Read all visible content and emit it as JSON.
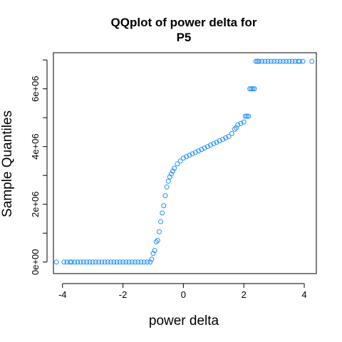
{
  "chart_data": {
    "type": "scatter",
    "title_lines": [
      "QQplot of power delta for",
      "P5"
    ],
    "xlabel": "power delta",
    "ylabel": "Sample Quantiles",
    "xlim": [
      -4.3,
      4.4
    ],
    "ylim": [
      -400000,
      7250000
    ],
    "x_ticks": [
      -4,
      -2,
      0,
      2,
      4
    ],
    "x_tick_labels": [
      "-4",
      "-2",
      "0",
      "2",
      "4"
    ],
    "y_ticks": [
      0,
      1000000,
      2000000,
      3000000,
      4000000,
      5000000,
      6000000,
      7000000
    ],
    "y_tick_labels": [
      "0e+00",
      "",
      "2e+06",
      "",
      "4e+06",
      "",
      "6e+06",
      ""
    ],
    "grid": false,
    "point_color": "#1E90FF",
    "series": [
      {
        "x": [
          -4.2,
          -3.95,
          -3.85,
          -3.75,
          -3.7,
          -3.6,
          -3.5,
          -3.4,
          -3.3,
          -3.2,
          -3.1,
          -3.0,
          -2.9,
          -2.8,
          -2.7,
          -2.6,
          -2.5,
          -2.4,
          -2.3,
          -2.2,
          -2.1,
          -2.0,
          -1.9,
          -1.8,
          -1.7,
          -1.6,
          -1.5,
          -1.4,
          -1.3,
          -1.2,
          -1.1,
          -1.05,
          -1.0,
          -0.95,
          -0.9,
          -0.85,
          -0.8,
          -0.75,
          -0.7,
          -0.65,
          -0.6,
          -0.55,
          -0.5,
          -0.45,
          -0.4,
          -0.35,
          -0.3,
          -0.2,
          -0.1,
          0.0,
          0.1,
          0.2,
          0.3,
          0.4,
          0.5,
          0.6,
          0.7,
          0.8,
          0.9,
          1.0,
          1.1,
          1.2,
          1.3,
          1.4,
          1.5,
          1.6,
          1.7,
          1.75,
          1.8,
          1.9,
          2.0,
          2.05,
          2.1,
          2.15,
          2.2,
          2.25,
          2.3,
          2.35,
          2.4,
          2.45,
          2.5,
          2.6,
          2.7,
          2.8,
          2.9,
          3.0,
          3.1,
          3.2,
          3.3,
          3.4,
          3.5,
          3.6,
          3.7,
          3.8,
          3.85,
          3.95,
          4.25
        ],
        "y": [
          0,
          0,
          0,
          0,
          0,
          0,
          0,
          0,
          0,
          0,
          0,
          0,
          0,
          0,
          0,
          0,
          0,
          0,
          0,
          0,
          0,
          0,
          0,
          0,
          0,
          0,
          0,
          0,
          0,
          0,
          0,
          100000,
          300000,
          400000,
          700000,
          750000,
          1050000,
          1400000,
          1700000,
          1950000,
          2300000,
          2600000,
          2800000,
          2950000,
          3050000,
          3150000,
          3250000,
          3400000,
          3500000,
          3600000,
          3650000,
          3700000,
          3750000,
          3800000,
          3850000,
          3900000,
          3950000,
          4000000,
          4050000,
          4100000,
          4150000,
          4200000,
          4250000,
          4300000,
          4350000,
          4450000,
          4600000,
          4650000,
          4750000,
          4800000,
          4850000,
          5050000,
          5050000,
          5050000,
          6000000,
          6000000,
          6000000,
          6000000,
          6950000,
          6950000,
          6950000,
          6950000,
          6950000,
          6950000,
          6950000,
          6950000,
          6950000,
          6950000,
          6950000,
          6950000,
          6950000,
          6950000,
          6950000,
          6950000,
          6950000,
          6950000,
          6950000
        ]
      }
    ]
  }
}
